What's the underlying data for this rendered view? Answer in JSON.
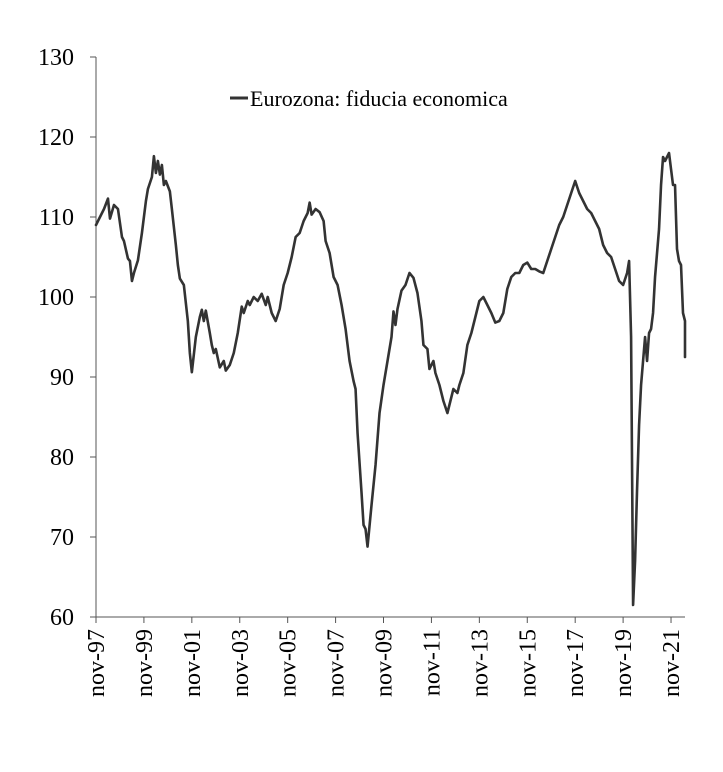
{
  "chart_data": {
    "type": "line",
    "title": "",
    "xlabel": "",
    "ylabel": "",
    "ylim": [
      60,
      130
    ],
    "yticks": [
      60,
      70,
      80,
      90,
      100,
      110,
      120,
      130
    ],
    "xlim": [
      "1997-11",
      "2022-06"
    ],
    "xticks": [
      {
        "date": "1997-11",
        "label": "nov-97"
      },
      {
        "date": "1999-11",
        "label": "nov-99"
      },
      {
        "date": "2001-11",
        "label": "nov-01"
      },
      {
        "date": "2003-11",
        "label": "nov-03"
      },
      {
        "date": "2005-11",
        "label": "nov-05"
      },
      {
        "date": "2007-11",
        "label": "nov-07"
      },
      {
        "date": "2009-11",
        "label": "nov-09"
      },
      {
        "date": "2011-11",
        "label": "nov-11"
      },
      {
        "date": "2013-11",
        "label": "nov-13"
      },
      {
        "date": "2015-11",
        "label": "nov-15"
      },
      {
        "date": "2017-11",
        "label": "nov-17"
      },
      {
        "date": "2019-11",
        "label": "nov-19"
      },
      {
        "date": "2021-11",
        "label": "nov-21"
      }
    ],
    "grid": false,
    "legend_position": "top-center",
    "series": [
      {
        "name": "Eurozona: fiducia economica",
        "color": "#333333",
        "points": [
          [
            "1997-11",
            109.0
          ],
          [
            "1998-01",
            110.0
          ],
          [
            "1998-03",
            111.0
          ],
          [
            "1998-05",
            112.3
          ],
          [
            "1998-06",
            109.8
          ],
          [
            "1998-08",
            111.5
          ],
          [
            "1998-10",
            111.0
          ],
          [
            "1998-12",
            107.5
          ],
          [
            "1999-01",
            107.0
          ],
          [
            "1999-03",
            104.8
          ],
          [
            "1999-04",
            104.5
          ],
          [
            "1999-05",
            102.0
          ],
          [
            "1999-06",
            103.0
          ],
          [
            "1999-08",
            104.6
          ],
          [
            "1999-10",
            108.0
          ],
          [
            "1999-12",
            112.0
          ],
          [
            "2000-01",
            113.5
          ],
          [
            "2000-03",
            115.0
          ],
          [
            "2000-04",
            117.6
          ],
          [
            "2000-05",
            115.5
          ],
          [
            "2000-06",
            117.0
          ],
          [
            "2000-07",
            115.3
          ],
          [
            "2000-08",
            116.5
          ],
          [
            "2000-09",
            114.0
          ],
          [
            "2000-10",
            114.5
          ],
          [
            "2000-12",
            113.2
          ],
          [
            "2001-01",
            111.0
          ],
          [
            "2001-03",
            106.5
          ],
          [
            "2001-04",
            104.0
          ],
          [
            "2001-05",
            102.3
          ],
          [
            "2001-07",
            101.5
          ],
          [
            "2001-09",
            97.0
          ],
          [
            "2001-10",
            93.0
          ],
          [
            "2001-11",
            90.6
          ],
          [
            "2002-01",
            95.0
          ],
          [
            "2002-03",
            97.5
          ],
          [
            "2002-04",
            98.4
          ],
          [
            "2002-05",
            97.0
          ],
          [
            "2002-06",
            98.3
          ],
          [
            "2002-08",
            95.5
          ],
          [
            "2002-09",
            94.0
          ],
          [
            "2002-10",
            93.0
          ],
          [
            "2002-11",
            93.5
          ],
          [
            "2003-01",
            91.2
          ],
          [
            "2003-03",
            92.0
          ],
          [
            "2003-04",
            90.8
          ],
          [
            "2003-06",
            91.5
          ],
          [
            "2003-08",
            93.0
          ],
          [
            "2003-10",
            95.5
          ],
          [
            "2003-12",
            98.8
          ],
          [
            "2004-01",
            98.0
          ],
          [
            "2004-03",
            99.5
          ],
          [
            "2004-04",
            99.0
          ],
          [
            "2004-06",
            100.0
          ],
          [
            "2004-08",
            99.5
          ],
          [
            "2004-10",
            100.4
          ],
          [
            "2004-12",
            99.0
          ],
          [
            "2005-01",
            100.0
          ],
          [
            "2005-03",
            98.0
          ],
          [
            "2005-05",
            97.0
          ],
          [
            "2005-07",
            98.5
          ],
          [
            "2005-09",
            101.5
          ],
          [
            "2005-11",
            103.0
          ],
          [
            "2006-01",
            105.0
          ],
          [
            "2006-03",
            107.5
          ],
          [
            "2006-05",
            108.0
          ],
          [
            "2006-07",
            109.5
          ],
          [
            "2006-09",
            110.5
          ],
          [
            "2006-10",
            111.8
          ],
          [
            "2006-11",
            110.3
          ],
          [
            "2007-01",
            111.0
          ],
          [
            "2007-03",
            110.6
          ],
          [
            "2007-05",
            109.5
          ],
          [
            "2007-06",
            107.0
          ],
          [
            "2007-08",
            105.5
          ],
          [
            "2007-10",
            102.5
          ],
          [
            "2007-12",
            101.5
          ],
          [
            "2008-02",
            99.0
          ],
          [
            "2008-04",
            96.0
          ],
          [
            "2008-06",
            92.0
          ],
          [
            "2008-08",
            89.5
          ],
          [
            "2008-09",
            88.5
          ],
          [
            "2008-10",
            83.0
          ],
          [
            "2008-12",
            75.5
          ],
          [
            "2009-01",
            71.5
          ],
          [
            "2009-02",
            71.0
          ],
          [
            "2009-03",
            68.8
          ],
          [
            "2009-05",
            74.0
          ],
          [
            "2009-07",
            79.0
          ],
          [
            "2009-09",
            85.5
          ],
          [
            "2009-11",
            89.0
          ],
          [
            "2010-01",
            92.0
          ],
          [
            "2010-03",
            95.0
          ],
          [
            "2010-04",
            98.2
          ],
          [
            "2010-05",
            96.5
          ],
          [
            "2010-06",
            98.5
          ],
          [
            "2010-08",
            100.8
          ],
          [
            "2010-10",
            101.5
          ],
          [
            "2010-12",
            103.0
          ],
          [
            "2011-02",
            102.4
          ],
          [
            "2011-04",
            100.5
          ],
          [
            "2011-06",
            97.0
          ],
          [
            "2011-07",
            94.0
          ],
          [
            "2011-09",
            93.5
          ],
          [
            "2011-10",
            91.0
          ],
          [
            "2011-12",
            92.0
          ],
          [
            "2012-01",
            90.5
          ],
          [
            "2012-03",
            89.0
          ],
          [
            "2012-05",
            87.0
          ],
          [
            "2012-07",
            85.5
          ],
          [
            "2012-08",
            86.5
          ],
          [
            "2012-10",
            88.5
          ],
          [
            "2012-12",
            88.0
          ],
          [
            "2013-01",
            89.0
          ],
          [
            "2013-03",
            90.5
          ],
          [
            "2013-05",
            94.0
          ],
          [
            "2013-07",
            95.5
          ],
          [
            "2013-09",
            97.5
          ],
          [
            "2013-11",
            99.5
          ],
          [
            "2014-01",
            100.0
          ],
          [
            "2014-03",
            99.0
          ],
          [
            "2014-05",
            98.0
          ],
          [
            "2014-07",
            96.8
          ],
          [
            "2014-09",
            97.0
          ],
          [
            "2014-11",
            98.0
          ],
          [
            "2015-01",
            101.0
          ],
          [
            "2015-03",
            102.5
          ],
          [
            "2015-05",
            103.0
          ],
          [
            "2015-07",
            103.0
          ],
          [
            "2015-09",
            104.0
          ],
          [
            "2015-11",
            104.3
          ],
          [
            "2016-01",
            103.5
          ],
          [
            "2016-03",
            103.5
          ],
          [
            "2016-05",
            103.2
          ],
          [
            "2016-07",
            103.0
          ],
          [
            "2016-09",
            104.5
          ],
          [
            "2016-11",
            106.0
          ],
          [
            "2017-01",
            107.5
          ],
          [
            "2017-03",
            109.0
          ],
          [
            "2017-05",
            110.0
          ],
          [
            "2017-07",
            111.5
          ],
          [
            "2017-09",
            113.0
          ],
          [
            "2017-11",
            114.5
          ],
          [
            "2018-01",
            113.0
          ],
          [
            "2018-03",
            112.0
          ],
          [
            "2018-05",
            111.0
          ],
          [
            "2018-07",
            110.5
          ],
          [
            "2018-09",
            109.5
          ],
          [
            "2018-11",
            108.5
          ],
          [
            "2019-01",
            106.5
          ],
          [
            "2019-03",
            105.5
          ],
          [
            "2019-05",
            105.0
          ],
          [
            "2019-07",
            103.5
          ],
          [
            "2019-09",
            102.0
          ],
          [
            "2019-11",
            101.5
          ],
          [
            "2020-01",
            103.0
          ],
          [
            "2020-02",
            104.5
          ],
          [
            "2020-03",
            95.0
          ],
          [
            "2020-04",
            61.5
          ],
          [
            "2020-05",
            67.0
          ],
          [
            "2020-06",
            76.0
          ],
          [
            "2020-07",
            84.0
          ],
          [
            "2020-08",
            89.0
          ],
          [
            "2020-09",
            92.0
          ],
          [
            "2020-10",
            95.0
          ],
          [
            "2020-11",
            92.0
          ],
          [
            "2020-12",
            95.5
          ],
          [
            "2021-01",
            96.0
          ],
          [
            "2021-02",
            98.0
          ],
          [
            "2021-03",
            102.5
          ],
          [
            "2021-05",
            108.5
          ],
          [
            "2021-06",
            114.0
          ],
          [
            "2021-07",
            117.5
          ],
          [
            "2021-08",
            117.0
          ],
          [
            "2021-09",
            117.5
          ],
          [
            "2021-10",
            118.0
          ],
          [
            "2021-11",
            116.0
          ],
          [
            "2021-12",
            114.0
          ],
          [
            "2022-01",
            114.0
          ],
          [
            "2022-02",
            106.0
          ],
          [
            "2022-03",
            104.5
          ],
          [
            "2022-04",
            104.0
          ],
          [
            "2022-05",
            98.0
          ],
          [
            "2022-06",
            97.0
          ],
          [
            "2022-06",
            93.5
          ],
          [
            "2022-06",
            92.5
          ]
        ]
      }
    ]
  }
}
